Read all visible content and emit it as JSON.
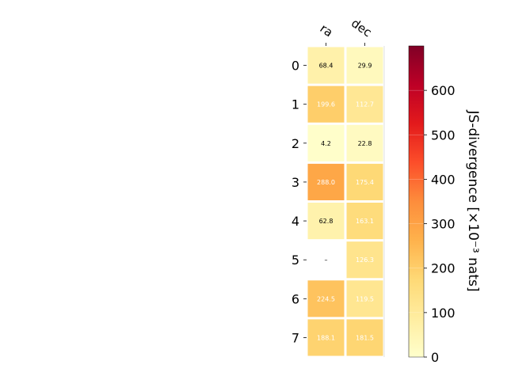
{
  "chart_data": {
    "type": "heatmap",
    "columns": [
      "ra",
      "dec"
    ],
    "rows": [
      "0",
      "1",
      "2",
      "3",
      "4",
      "5",
      "6",
      "7"
    ],
    "values": [
      [
        68.4,
        29.9
      ],
      [
        199.6,
        112.7
      ],
      [
        4.2,
        22.8
      ],
      [
        288.0,
        175.4
      ],
      [
        62.8,
        163.1
      ],
      [
        null,
        126.3
      ],
      [
        224.5,
        119.5
      ],
      [
        188.1,
        181.5
      ]
    ],
    "missing_label": "–",
    "colorbar": {
      "label": "JS-divergence [×10⁻³ nats]",
      "range": [
        0,
        700
      ],
      "ticks": [
        0,
        100,
        200,
        300,
        400,
        500,
        600
      ],
      "colormap": "YlOrRd",
      "colormap_stops": [
        "#ffffcc",
        "#ffeda0",
        "#fed976",
        "#feb24c",
        "#fd8d3c",
        "#fc4e2a",
        "#e31a1c",
        "#bd0026",
        "#800026"
      ]
    }
  }
}
